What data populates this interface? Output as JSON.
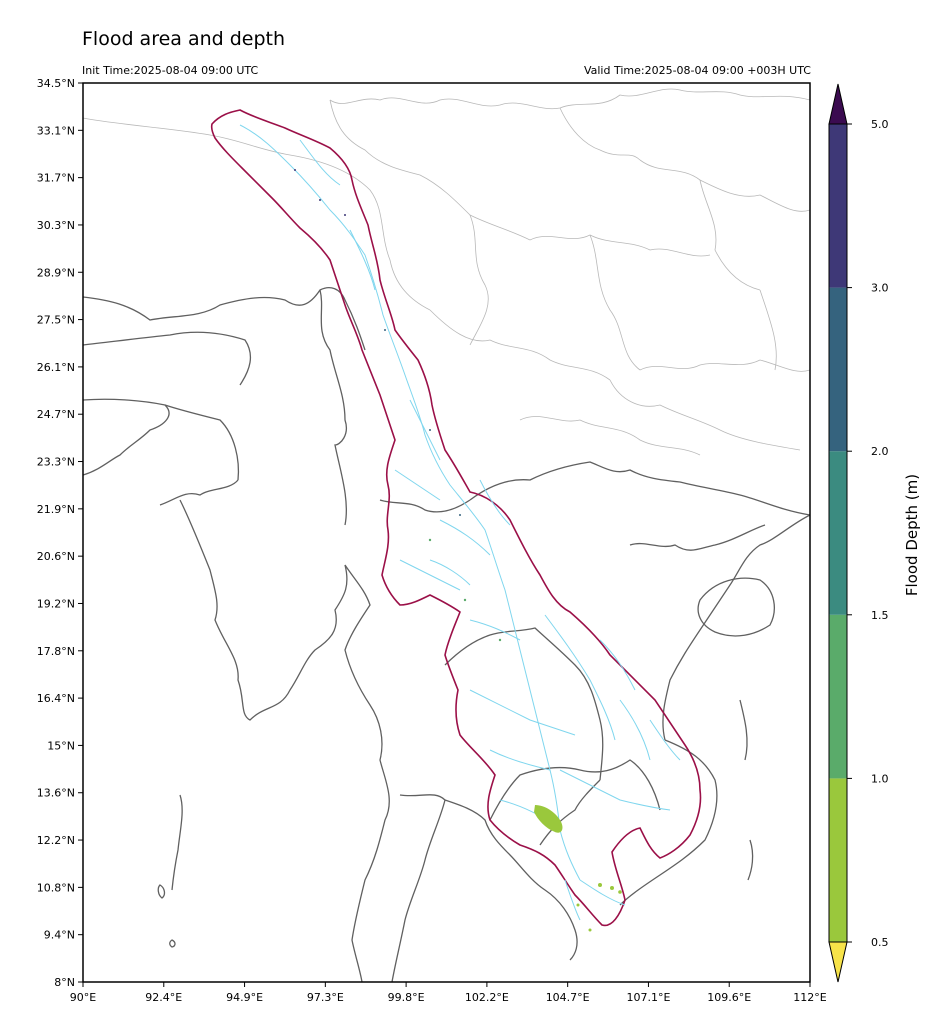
{
  "header": {
    "title": "Flood area and depth",
    "init_time": "Init Time:2025-08-04 09:00 UTC",
    "valid_time": "Valid Time:2025-08-04 09:00 +003H UTC"
  },
  "map": {
    "lat_ticks": [
      "34.5°N",
      "33.1°N",
      "31.7°N",
      "30.3°N",
      "28.9°N",
      "27.5°N",
      "26.1°N",
      "24.7°N",
      "23.3°N",
      "21.9°N",
      "20.6°N",
      "19.2°N",
      "17.8°N",
      "16.4°N",
      "15°N",
      "13.6°N",
      "12.2°N",
      "10.8°N",
      "9.4°N",
      "8°N"
    ],
    "lon_ticks": [
      "90°E",
      "92.4°E",
      "94.9°E",
      "97.3°E",
      "99.8°E",
      "102.2°E",
      "104.7°E",
      "107.1°E",
      "109.6°E",
      "112°E"
    ],
    "colors": {
      "basin_outline": "#9b1048",
      "country_border": "#606060",
      "province_border": "#b8b8b8",
      "river": "#7fd6ee"
    }
  },
  "colorbar": {
    "label": "Flood Depth (m)",
    "ticks": [
      "0.5",
      "1.0",
      "1.5",
      "2.0",
      "3.0",
      "5.0"
    ],
    "segments": [
      {
        "from": "0.5",
        "to": "1.0",
        "color": "#9ac83c"
      },
      {
        "from": "1.0",
        "to": "1.5",
        "color": "#5aab6a"
      },
      {
        "from": "1.5",
        "to": "2.0",
        "color": "#3b8b80"
      },
      {
        "from": "2.0",
        "to": "3.0",
        "color": "#35637e"
      },
      {
        "from": "3.0",
        "to": "5.0",
        "color": "#3e3877"
      }
    ],
    "under_color": "#f7e349",
    "over_color": "#3b0b50"
  }
}
